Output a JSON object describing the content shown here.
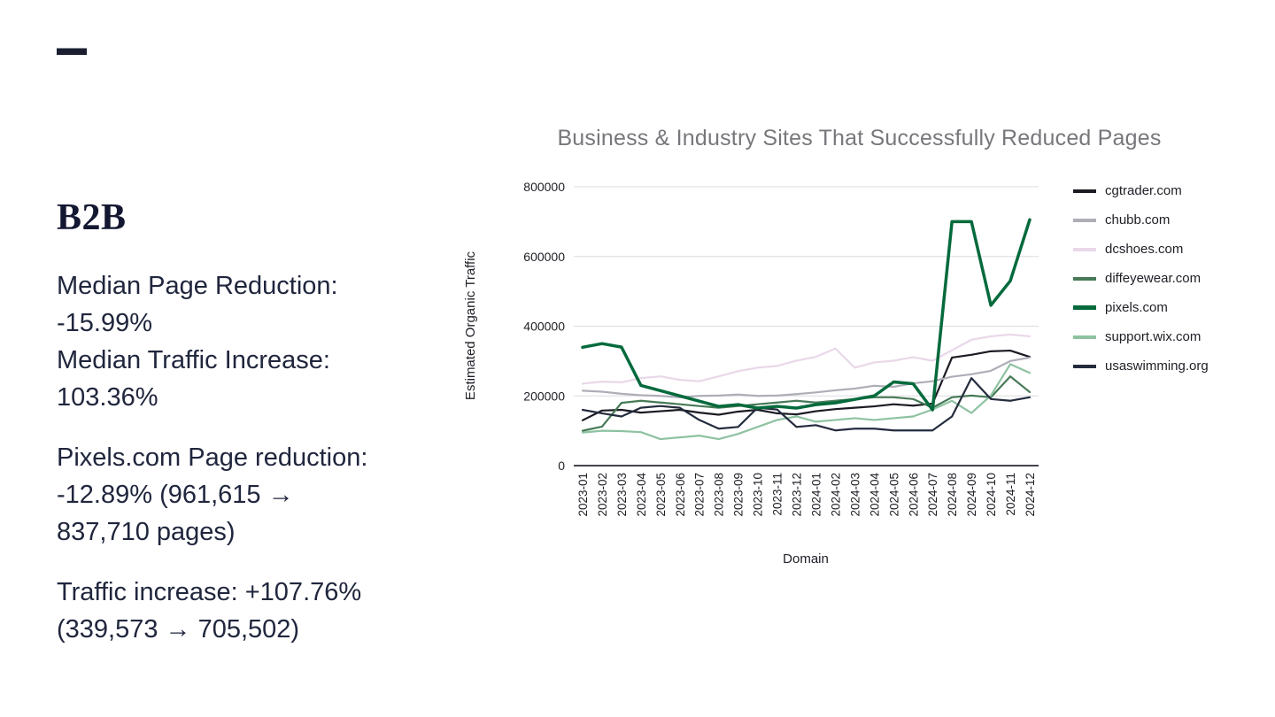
{
  "slide": {
    "dash": "—",
    "heading": "B2B",
    "text_blocks": [
      {
        "lines": [
          "Median Page Reduction:",
          "-15.99%",
          "Median Traffic Increase:",
          "103.36%"
        ]
      },
      {
        "lines": [
          "Pixels.com Page reduction:",
          "-12.89% (961,615 →",
          "837,710 pages)"
        ]
      },
      {
        "lines": [
          "Traffic increase: +107.76%",
          "(339,573 → 705,502)"
        ]
      }
    ]
  },
  "chart_data": {
    "type": "line",
    "title": "Business & Industry Sites That Successfully Reduced Pages",
    "xlabel": "Domain",
    "ylabel": "Estimated Organic Traffic",
    "ylim": [
      0,
      800000
    ],
    "yticks": [
      0,
      200000,
      400000,
      600000,
      800000
    ],
    "grid": true,
    "legend_position": "right",
    "categories": [
      "2023-01",
      "2023-02",
      "2023-03",
      "2023-04",
      "2023-05",
      "2023-06",
      "2023-07",
      "2023-08",
      "2023-09",
      "2023-10",
      "2023-11",
      "2023-12",
      "2024-01",
      "2024-02",
      "2024-03",
      "2024-04",
      "2024-05",
      "2024-06",
      "2024-07",
      "2024-08",
      "2024-09",
      "2024-10",
      "2024-11",
      "2024-12"
    ],
    "series": [
      {
        "name": "cgtrader.com",
        "color": "#1b1b23",
        "line_width": 2.2,
        "values": [
          130000,
          158000,
          160000,
          152000,
          156000,
          160000,
          152000,
          146000,
          155000,
          160000,
          150000,
          147000,
          156000,
          162000,
          166000,
          170000,
          176000,
          172000,
          178000,
          310000,
          318000,
          328000,
          330000,
          312000
        ]
      },
      {
        "name": "chubb.com",
        "color": "#aeaeb8",
        "line_width": 2.2,
        "values": [
          215000,
          212000,
          206000,
          202000,
          200000,
          196000,
          200000,
          201000,
          204000,
          200000,
          201000,
          205000,
          210000,
          216000,
          221000,
          229000,
          226000,
          236000,
          242000,
          255000,
          262000,
          272000,
          300000,
          310000
        ]
      },
      {
        "name": "dcshoes.com",
        "color": "#e9d8e9",
        "line_width": 2.2,
        "values": [
          235000,
          241000,
          239000,
          251000,
          256000,
          246000,
          242000,
          256000,
          271000,
          281000,
          286000,
          301000,
          312000,
          336000,
          281000,
          296000,
          301000,
          311000,
          301000,
          331000,
          361000,
          371000,
          376000,
          371000
        ]
      },
      {
        "name": "diffeyewear.com",
        "color": "#477a58",
        "line_width": 2.2,
        "values": [
          100000,
          112000,
          180000,
          186000,
          181000,
          176000,
          171000,
          166000,
          171000,
          176000,
          181000,
          186000,
          181000,
          186000,
          191000,
          196000,
          196000,
          191000,
          166000,
          196000,
          201000,
          196000,
          256000,
          211000
        ]
      },
      {
        "name": "pixels.com",
        "color": "#046a3c",
        "line_width": 3.5,
        "values": [
          339573,
          350000,
          340000,
          230000,
          215000,
          200000,
          185000,
          170000,
          175000,
          165000,
          170000,
          165000,
          175000,
          180000,
          190000,
          200000,
          240000,
          235000,
          160000,
          700000,
          700000,
          460000,
          530000,
          705502
        ]
      },
      {
        "name": "support.wix.com",
        "color": "#8ec2a1",
        "line_width": 2.2,
        "values": [
          95000,
          100000,
          99000,
          96000,
          76000,
          81000,
          86000,
          76000,
          91000,
          111000,
          131000,
          141000,
          126000,
          131000,
          136000,
          131000,
          136000,
          141000,
          161000,
          186000,
          151000,
          201000,
          291000,
          266000
        ]
      },
      {
        "name": "usaswimming.org",
        "color": "#242c3e",
        "line_width": 2.2,
        "values": [
          160000,
          150000,
          141000,
          166000,
          171000,
          166000,
          131000,
          106000,
          111000,
          166000,
          161000,
          111000,
          116000,
          101000,
          106000,
          106000,
          101000,
          101000,
          101000,
          141000,
          251000,
          191000,
          186000,
          196000
        ]
      }
    ]
  },
  "colors": {
    "text": "#20263d",
    "title": "#77777c",
    "grid": "#dcdce1",
    "axis": "#2a2a32"
  }
}
